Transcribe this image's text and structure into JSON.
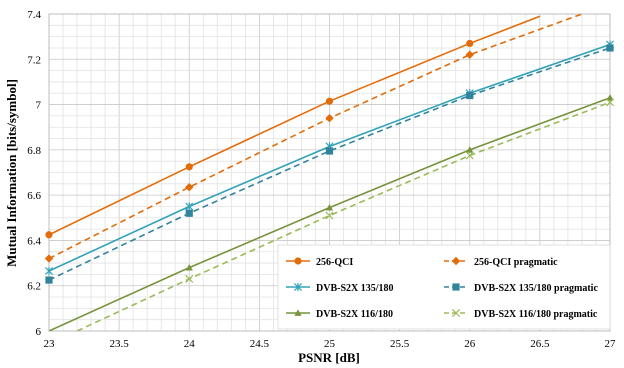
{
  "chart_data": {
    "type": "line",
    "xlabel": "PSNR [dB]",
    "ylabel": "Mutual Information [bits/symbol]",
    "xlim": [
      23,
      27
    ],
    "ylim": [
      6,
      7.4
    ],
    "x_ticks": [
      "23",
      "23.5",
      "24",
      "24.5",
      "25",
      "25.5",
      "26",
      "26.5",
      "27"
    ],
    "y_ticks": [
      "6",
      "6.2",
      "6.4",
      "6.6",
      "6.8",
      "7",
      "7.2",
      "7.4"
    ],
    "minor_grid_step_x": 0.1,
    "minor_grid_step_y": 0.05,
    "grid": true,
    "legend_position": "bottom-right",
    "series": [
      {
        "name": "256-QCI",
        "color": "#E36C0A",
        "dash": "solid",
        "marker": "circle",
        "x": [
          23,
          24,
          25,
          26,
          26.5
        ],
        "y": [
          6.425,
          6.725,
          7.015,
          7.27,
          7.39
        ],
        "marker_x": [
          23,
          24,
          25,
          26
        ]
      },
      {
        "name": "256-QCI pragmatic",
        "color": "#E36C0A",
        "dash": "dashed",
        "marker": "diamond",
        "x": [
          23,
          24,
          25,
          26,
          26.8
        ],
        "y": [
          6.32,
          6.635,
          6.94,
          7.22,
          7.4
        ],
        "marker_x": [
          23,
          24,
          25,
          26
        ]
      },
      {
        "name": "DVB-S2X 135/180",
        "color": "#31A2B8",
        "dash": "solid",
        "marker": "asterisk",
        "x": [
          23,
          24,
          25,
          26,
          27
        ],
        "y": [
          6.265,
          6.55,
          6.815,
          7.05,
          7.265
        ],
        "marker_x": [
          23,
          24,
          25,
          26,
          27
        ]
      },
      {
        "name": "DVB-S2X 135/180 pragmatic",
        "color": "#31849B",
        "dash": "dashed",
        "marker": "square",
        "x": [
          23,
          24,
          25,
          26,
          27
        ],
        "y": [
          6.225,
          6.52,
          6.795,
          7.04,
          7.25
        ],
        "marker_x": [
          23,
          24,
          25,
          26,
          27
        ]
      },
      {
        "name": "DVB-S2X 116/180",
        "color": "#77933C",
        "dash": "solid",
        "marker": "triangle",
        "x": [
          23,
          24,
          25,
          26,
          27
        ],
        "y": [
          6.0,
          6.28,
          6.545,
          6.8,
          7.03
        ],
        "marker_x": [
          24,
          25,
          26,
          27
        ]
      },
      {
        "name": "DVB-S2X 116/180 pragmatic",
        "color": "#9BBB59",
        "dash": "dashed",
        "marker": "x",
        "x": [
          23.2,
          24,
          25,
          26,
          27
        ],
        "y": [
          6.0,
          6.23,
          6.51,
          6.775,
          7.01
        ],
        "marker_x": [
          24,
          25,
          26,
          27
        ]
      }
    ]
  }
}
